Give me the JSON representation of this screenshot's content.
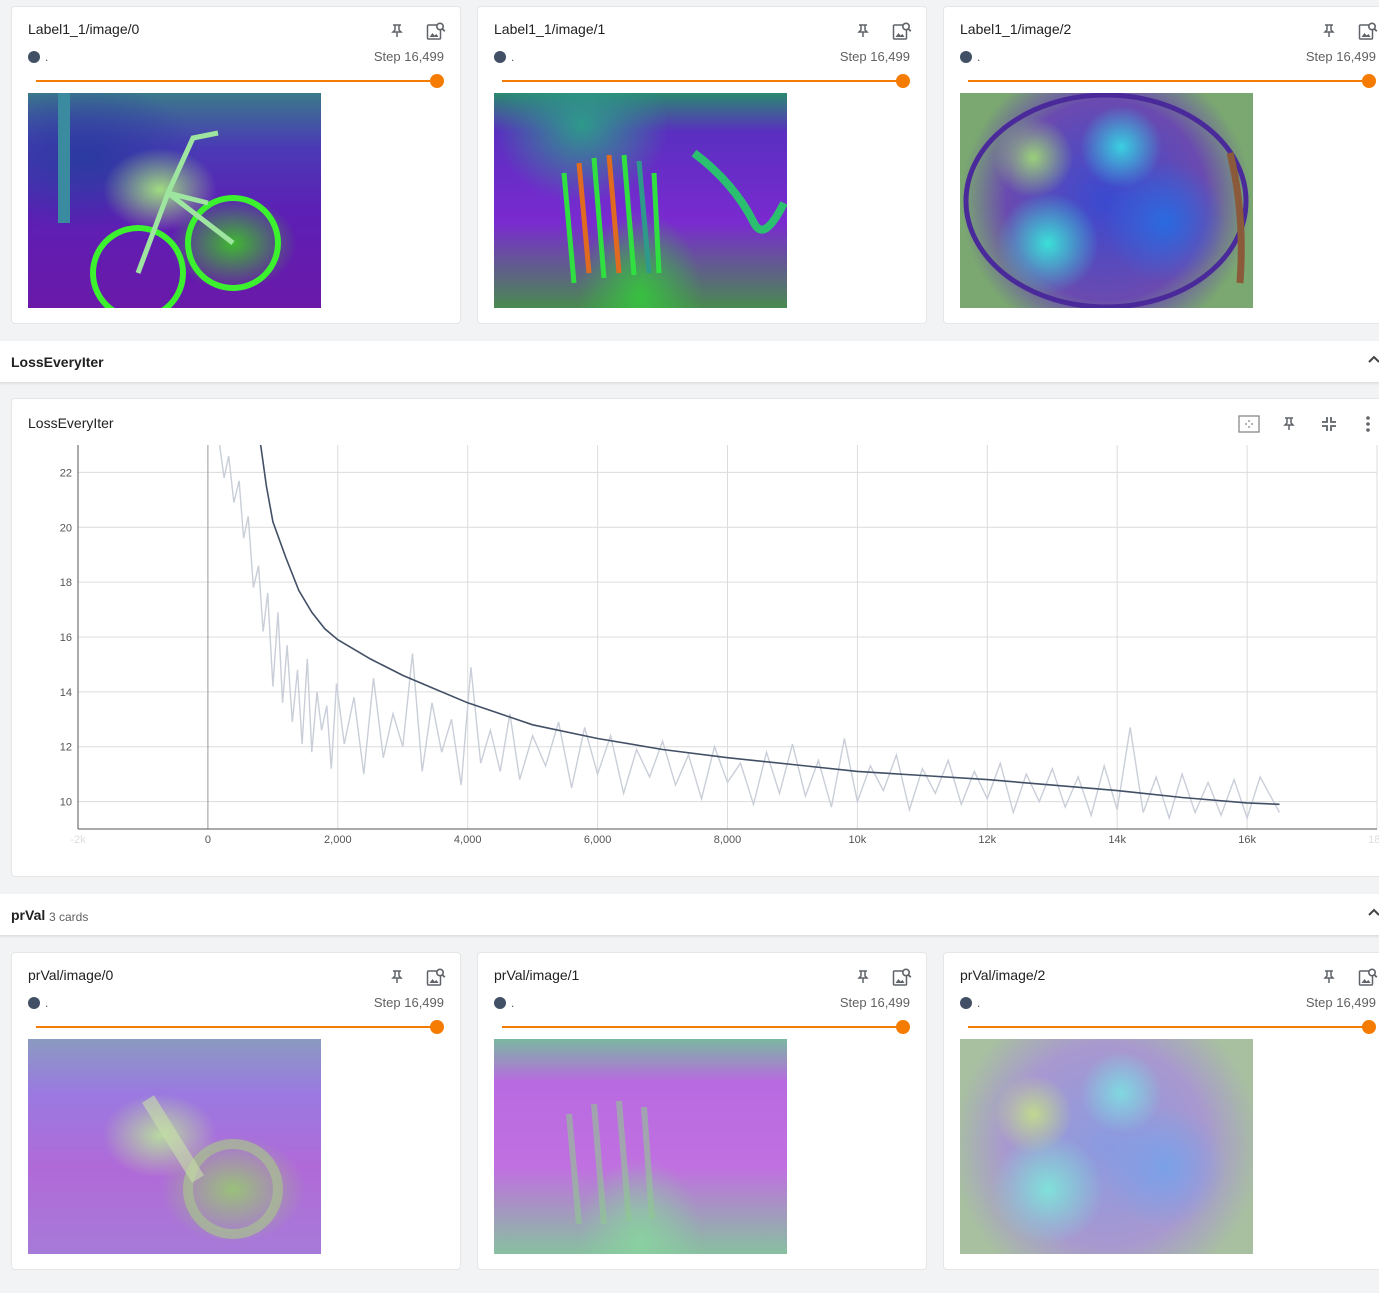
{
  "label_section": {
    "cards": [
      {
        "title": "Label1_1/image/0",
        "run": ".",
        "step": "Step 16,499"
      },
      {
        "title": "Label1_1/image/1",
        "run": ".",
        "step": "Step 16,499"
      },
      {
        "title": "Label1_1/image/2",
        "run": ".",
        "step": "Step 16,499"
      }
    ]
  },
  "loss_section": {
    "title": "LossEveryIter",
    "card_title": "LossEveryIter"
  },
  "prval_section": {
    "title": "prVal",
    "count": "3 cards",
    "cards": [
      {
        "title": "prVal/image/0",
        "run": ".",
        "step": "Step 16,499"
      },
      {
        "title": "prVal/image/1",
        "run": ".",
        "step": "Step 16,499"
      },
      {
        "title": "prVal/image/2",
        "run": ".",
        "step": "Step 16,499"
      }
    ]
  },
  "icons": {
    "pin": "pin-icon",
    "image_search": "image-search-icon",
    "fit_domain": "fit-domain-icon",
    "collapse": "fullscreen-exit-icon",
    "more": "more-vert-icon",
    "chevron": "chevron-up-icon"
  },
  "colors": {
    "accent": "#f57c00",
    "run": "#425066",
    "raw_line": "#c9ced8"
  },
  "chart_data": {
    "type": "line",
    "title": "LossEveryIter",
    "xlabel": "",
    "ylabel": "",
    "xlim": [
      -2000,
      18000
    ],
    "ylim": [
      9,
      23
    ],
    "x_ticks": [
      -2000,
      0,
      2000,
      4000,
      6000,
      8000,
      10000,
      12000,
      14000,
      16000,
      18000
    ],
    "x_tick_labels": [
      "-2k",
      "0",
      "2,000",
      "4,000",
      "6,000",
      "8,000",
      "10k",
      "12k",
      "14k",
      "16k",
      "18k"
    ],
    "y_ticks": [
      10,
      12,
      14,
      16,
      18,
      20,
      22
    ],
    "y_tick_labels": [
      "10",
      "12",
      "14",
      "16",
      "18",
      "20",
      "22"
    ],
    "grid": true,
    "series": [
      {
        "role": "smoothed",
        "color": "#425066",
        "x": [
          800,
          900,
          1000,
          1200,
          1400,
          1600,
          1800,
          2000,
          2500,
          3000,
          3500,
          4000,
          4500,
          5000,
          6000,
          7000,
          8000,
          9000,
          10000,
          11000,
          12000,
          13000,
          14000,
          15000,
          16000,
          16499
        ],
        "y": [
          23.2,
          21.5,
          20.2,
          18.9,
          17.7,
          16.9,
          16.3,
          15.9,
          15.2,
          14.6,
          14.1,
          13.6,
          13.2,
          12.8,
          12.3,
          11.9,
          11.6,
          11.35,
          11.1,
          10.95,
          10.8,
          10.6,
          10.4,
          10.15,
          9.95,
          9.9
        ]
      },
      {
        "role": "raw",
        "color": "#c9ced8",
        "x": [
          180,
          250,
          320,
          400,
          480,
          550,
          620,
          700,
          780,
          850,
          920,
          1000,
          1080,
          1150,
          1220,
          1300,
          1380,
          1450,
          1530,
          1600,
          1680,
          1750,
          1830,
          1900,
          1980,
          2100,
          2250,
          2400,
          2550,
          2700,
          2850,
          3000,
          3150,
          3300,
          3450,
          3600,
          3750,
          3900,
          4050,
          4200,
          4350,
          4500,
          4650,
          4800,
          5000,
          5200,
          5400,
          5600,
          5800,
          6000,
          6200,
          6400,
          6600,
          6800,
          7000,
          7200,
          7400,
          7600,
          7800,
          8000,
          8200,
          8400,
          8600,
          8800,
          9000,
          9200,
          9400,
          9600,
          9800,
          10000,
          10200,
          10400,
          10600,
          10800,
          11000,
          11200,
          11400,
          11600,
          11800,
          12000,
          12200,
          12400,
          12600,
          12800,
          13000,
          13200,
          13400,
          13600,
          13800,
          14000,
          14200,
          14400,
          14600,
          14800,
          15000,
          15200,
          15400,
          15600,
          15800,
          16000,
          16200,
          16499
        ],
        "y": [
          23.0,
          21.8,
          22.6,
          20.9,
          21.7,
          19.6,
          20.4,
          17.8,
          18.6,
          16.2,
          17.6,
          14.2,
          16.9,
          13.6,
          15.7,
          12.9,
          14.8,
          12.1,
          15.2,
          11.8,
          14.0,
          12.6,
          13.5,
          11.2,
          14.3,
          12.1,
          13.8,
          11.0,
          14.5,
          11.6,
          13.2,
          12.0,
          15.4,
          11.1,
          13.6,
          11.8,
          13.0,
          10.6,
          14.9,
          11.4,
          12.6,
          11.1,
          13.2,
          10.8,
          12.4,
          11.3,
          12.9,
          10.5,
          12.7,
          11.0,
          12.4,
          10.3,
          11.9,
          10.9,
          12.2,
          10.6,
          11.7,
          10.1,
          12.0,
          10.7,
          11.4,
          9.9,
          11.8,
          10.3,
          12.1,
          10.2,
          11.5,
          9.8,
          12.3,
          10.0,
          11.3,
          10.4,
          11.7,
          9.7,
          11.2,
          10.3,
          11.5,
          9.9,
          11.1,
          10.1,
          11.4,
          9.6,
          11.0,
          10.0,
          11.2,
          9.8,
          10.9,
          9.5,
          11.3,
          9.7,
          12.7,
          9.6,
          10.9,
          9.4,
          11.0,
          9.6,
          10.7,
          9.5,
          10.8,
          9.4,
          10.9,
          9.6
        ]
      }
    ]
  }
}
